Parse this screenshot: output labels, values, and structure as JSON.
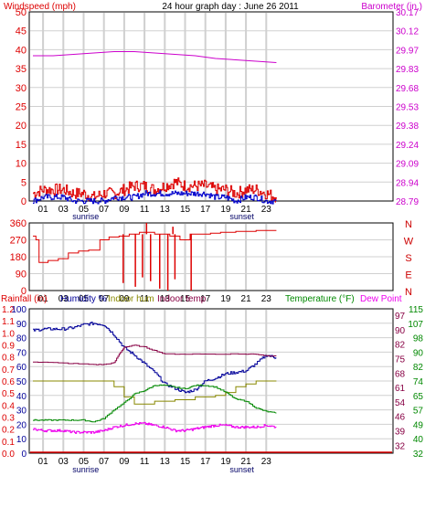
{
  "chart_data": [
    {
      "type": "line",
      "title": "24 hour graph day : June 26 2011",
      "y_left_label": "Windspeed (mph)",
      "y_right_label": "Barometer (in.)",
      "x_ticks": [
        "01",
        "03",
        "05",
        "07",
        "09",
        "11",
        "13",
        "15",
        "17",
        "19",
        "21",
        "23"
      ],
      "sun_labels": {
        "sunrise": "sunrise",
        "sunset": "sunset"
      },
      "y_left_ticks": [
        "50",
        "45",
        "40",
        "35",
        "30",
        "25",
        "20",
        "15",
        "10",
        "5",
        "0"
      ],
      "y_right_ticks": [
        "30.17",
        "30.12",
        "29.97",
        "29.83",
        "29.68",
        "29.53",
        "29.38",
        "29.24",
        "29.09",
        "28.94",
        "28.79"
      ],
      "ylim_left": [
        0,
        50
      ],
      "ylim_right": [
        28.79,
        30.17
      ],
      "grid": true,
      "series": [
        {
          "name": "Windspeed (mph)",
          "color": "#dd0000",
          "x": [
            0,
            1,
            2,
            3,
            4,
            5,
            6,
            7,
            8,
            9,
            10,
            11,
            12,
            13,
            14,
            15,
            16,
            17,
            18,
            19,
            20,
            21,
            22,
            23,
            24
          ],
          "values": [
            2,
            3,
            3,
            3,
            2,
            2,
            1,
            2,
            2,
            3,
            4,
            4,
            3,
            4,
            5,
            4,
            4,
            4,
            3,
            3,
            2,
            3,
            3,
            2,
            1
          ]
        },
        {
          "name": "Wind gust",
          "color": "#0000cc",
          "x": [
            0,
            1,
            2,
            3,
            4,
            5,
            6,
            7,
            8,
            9,
            10,
            11,
            12,
            13,
            14,
            15,
            16,
            17,
            18,
            19,
            20,
            21,
            22,
            23,
            24
          ],
          "values": [
            0,
            1,
            1,
            1,
            0,
            0,
            0,
            0,
            1,
            1,
            1,
            2,
            2,
            2,
            2,
            2,
            2,
            2,
            1,
            1,
            0,
            1,
            1,
            0,
            0
          ]
        },
        {
          "name": "Barometer (in.)",
          "color": "#cc00cc",
          "x": [
            0,
            2,
            4,
            6,
            8,
            10,
            12,
            14,
            16,
            18,
            20,
            22,
            24
          ],
          "values": [
            29.85,
            29.85,
            29.86,
            29.87,
            29.88,
            29.88,
            29.87,
            29.86,
            29.85,
            29.83,
            29.82,
            29.81,
            29.8
          ]
        }
      ]
    },
    {
      "type": "line",
      "y_ticks": [
        "360",
        "270",
        "180",
        "90",
        "0"
      ],
      "direction_labels": [
        "N",
        "W",
        "S",
        "E",
        "N"
      ],
      "ylim": [
        0,
        360
      ],
      "series": [
        {
          "name": "Wind direction",
          "color": "#dd0000",
          "x": [
            0,
            0.3,
            0.6,
            1.5,
            2.5,
            3.5,
            4.5,
            5.5,
            5.9,
            6.6,
            7.5,
            8.5,
            9.5,
            10.5,
            12,
            13.5,
            14.5,
            15.5,
            16.5,
            17.5,
            18.5,
            20,
            22,
            24
          ],
          "values": [
            290,
            270,
            150,
            160,
            170,
            200,
            210,
            215,
            215,
            270,
            285,
            290,
            300,
            310,
            300,
            290,
            270,
            300,
            300,
            305,
            310,
            315,
            320,
            320
          ]
        }
      ]
    },
    {
      "type": "line",
      "labels": {
        "rainfall": "Rainfall (in)",
        "humidity": "Humidity %",
        "indoor_hum": "Indoor hum",
        "indoor_temp": "Indoor temp",
        "temperature": "Temperature (°F)",
        "dew_point": "Dew Point"
      },
      "y_rain_ticks": [
        "1.2",
        "1.1",
        "1.0",
        "0.9",
        "0.8",
        "0.7",
        "0.6",
        "0.5",
        "0.4",
        "0.3",
        "0.2",
        "0.1",
        "0.0"
      ],
      "y_hum_ticks": [
        "100",
        "90",
        "80",
        "70",
        "60",
        "50",
        "40",
        "30",
        "20",
        "10",
        "0"
      ],
      "y_temp_ticks": [
        "115",
        "107",
        "98",
        "90",
        "82",
        "74",
        "65",
        "57",
        "49",
        "40",
        "32"
      ],
      "y_dew_ticks": [
        "97",
        "90",
        "82",
        "75",
        "68",
        "61",
        "54",
        "46",
        "39",
        "32"
      ],
      "x_ticks": [
        "01",
        "03",
        "05",
        "07",
        "09",
        "11",
        "13",
        "15",
        "17",
        "19",
        "21",
        "23"
      ],
      "sun_labels": {
        "sunrise": "sunrise",
        "sunset": "sunset"
      },
      "ylim_hum": [
        0,
        100
      ],
      "ylim_temp": [
        32,
        115
      ],
      "series": [
        {
          "name": "Humidity %",
          "color": "#000099",
          "x": [
            0,
            1,
            2,
            3,
            4,
            5,
            6,
            7,
            8,
            9,
            10,
            11,
            12,
            13,
            14,
            15,
            16,
            17,
            18,
            19,
            20,
            21,
            22,
            23,
            24
          ],
          "values": [
            85,
            86,
            86,
            86,
            87,
            89,
            90,
            89,
            82,
            73,
            68,
            62,
            56,
            48,
            45,
            42,
            44,
            50,
            52,
            55,
            56,
            57,
            62,
            68,
            66
          ]
        },
        {
          "name": "Indoor hum",
          "color": "#888800",
          "x": [
            0,
            2,
            4,
            6,
            7,
            8,
            9,
            10,
            11,
            12,
            13,
            14,
            15,
            16,
            17,
            18,
            19,
            20,
            21,
            22,
            23,
            24
          ],
          "values": [
            50,
            50,
            50,
            50,
            50,
            46,
            39,
            34,
            34,
            36,
            36,
            37,
            37,
            39,
            39,
            40,
            42,
            46,
            48,
            50,
            50,
            50
          ]
        },
        {
          "name": "Indoor temp",
          "color": "#880044",
          "x": [
            0,
            2,
            4,
            6,
            7,
            8,
            8.5,
            9,
            10,
            11,
            12,
            13,
            15,
            18,
            21,
            22,
            23,
            24
          ],
          "values": [
            84.5,
            84,
            83.5,
            83,
            83,
            84,
            89,
            93,
            94,
            93,
            91,
            89,
            89,
            89,
            89,
            89,
            88,
            88
          ]
        },
        {
          "name": "Temperature (°F)",
          "color": "#008800",
          "x": [
            0,
            1,
            2,
            3,
            4,
            5,
            6,
            7,
            8,
            9,
            10,
            11,
            12,
            13,
            14,
            15,
            16,
            17,
            18,
            19,
            20,
            21,
            22,
            23,
            24
          ],
          "values": [
            51,
            51,
            51,
            51,
            51,
            51,
            50,
            52,
            57,
            61,
            66,
            68,
            71,
            71,
            70,
            69,
            71,
            71,
            70,
            67,
            63,
            62,
            58,
            56,
            55
          ]
        },
        {
          "name": "Dew Point",
          "color": "#ee00ee",
          "x": [
            0,
            1,
            2,
            3,
            4,
            5,
            6,
            7,
            8,
            9,
            10,
            11,
            12,
            13,
            14,
            15,
            16,
            17,
            18,
            19,
            20,
            21,
            22,
            23,
            24
          ],
          "values": [
            46,
            45,
            45,
            45,
            44,
            44,
            44,
            45,
            47,
            48,
            49,
            49,
            48,
            47,
            45,
            45,
            46,
            47,
            48,
            48,
            47,
            47,
            47,
            48,
            47
          ]
        }
      ]
    }
  ]
}
